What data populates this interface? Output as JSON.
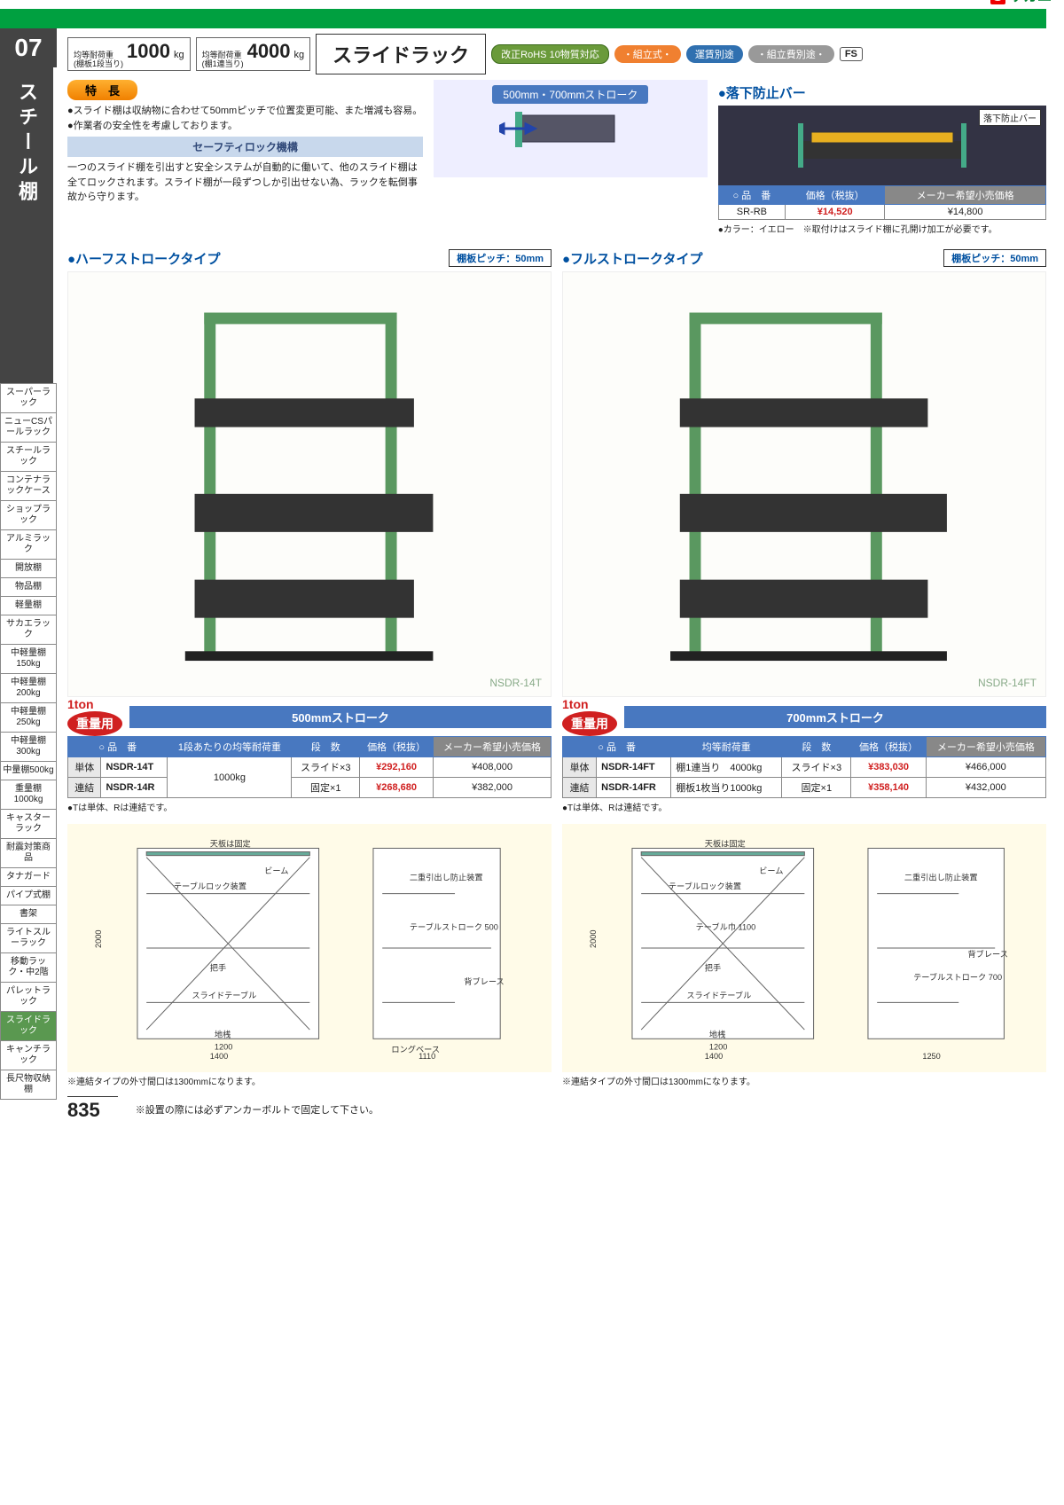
{
  "brand": "サカエ",
  "category": {
    "num": "07",
    "title": "スチール棚"
  },
  "sideNav": [
    "スーパーラック",
    "ニューCSパールラック",
    "スチールラック",
    "コンテナラックケース",
    "ショップラック",
    "アルミラック",
    "開放棚",
    "物品棚",
    "軽量棚",
    "サカエラック",
    "中軽量棚150kg",
    "中軽量棚200kg",
    "中軽量棚250kg",
    "中軽量棚300kg",
    "中量棚500kg",
    "重量棚1000kg",
    "キャスターラック",
    "耐震対策商品",
    "タナガード",
    "パイプ式棚",
    "書架",
    "ライトスルーラック",
    "移動ラック・中2階",
    "パレットラック",
    "スライドラック",
    "キャンチラック",
    "長尺物収納棚"
  ],
  "sideNavActive": 24,
  "loads": [
    {
      "label1": "均等耐荷重",
      "label2": "(棚板1段当り)",
      "value": "1000",
      "unit": "kg"
    },
    {
      "label1": "均等耐荷重",
      "label2": "(棚1連当り)",
      "value": "4000",
      "unit": "kg"
    }
  ],
  "title": "スライドラック",
  "badges": {
    "rohs": "改正RoHS 10物質対応",
    "pills": [
      "・組立式・",
      "運賃別途",
      "・組立費別途・"
    ],
    "fs": "FS"
  },
  "feature": {
    "label": "特　長",
    "bullets": [
      "●スライド棚は収納物に合わせて50mmピッチで位置変更可能、また増減も容易。",
      "●作業者の安全性を考慮しております。"
    ],
    "safetyHead": "セーフティロック機構",
    "safetyBody": "一つのスライド棚を引出すと安全システムが自動的に働いて、他のスライド棚は全てロックされます。スライド棚が一段ずつしか引出せない為、ラックを転倒事故から守ります。"
  },
  "strokeIllLabel": "500mm・700mmストローク",
  "fallBar": {
    "head": "●落下防止バー",
    "imgLabel": "落下防止バー",
    "table": {
      "cols": [
        "○ 品　番",
        "価格（税抜）",
        "メーカー希望小売価格"
      ],
      "row": [
        "SR-RB",
        "¥14,520",
        "¥14,800"
      ]
    },
    "note": "●カラー：イエロー　※取付けはスライド棚に孔開け加工が必要です。"
  },
  "halfStroke": {
    "head": "●ハーフストロークタイプ",
    "pitch": "棚板ピッチ：50mm",
    "model": "NSDR-14T",
    "ton": "1ton",
    "heavy": "重量用",
    "strokeBar": "500mmストローク",
    "tableCols": [
      "○ 品　番",
      "1段あたりの均等耐荷重",
      "段　数",
      "価格（税抜）",
      "メーカー希望小売価格"
    ],
    "rows": [
      {
        "lbl": "単体",
        "code": "NSDR-14T",
        "load": "1000kg",
        "tiers": "スライド×3",
        "price": "¥292,160",
        "msrp": "¥408,000"
      },
      {
        "lbl": "連結",
        "code": "NSDR-14R",
        "load": "",
        "tiers": "固定×1",
        "price": "¥268,680",
        "msrp": "¥382,000"
      }
    ],
    "note": "●Tは単体、Rは連結です。",
    "diagNote": "※連結タイプの外寸間口は1300mmになります。"
  },
  "fullStroke": {
    "head": "●フルストロークタイプ",
    "pitch": "棚板ピッチ：50mm",
    "model": "NSDR-14FT",
    "ton": "1ton",
    "heavy": "重量用",
    "strokeBar": "700mmストローク",
    "tableCols": [
      "○ 品　番",
      "均等耐荷重",
      "段　数",
      "価格（税抜）",
      "メーカー希望小売価格"
    ],
    "rows": [
      {
        "lbl": "単体",
        "code": "NSDR-14FT",
        "load": "棚1連当り　4000kg",
        "tiers": "スライド×3",
        "price": "¥383,030",
        "msrp": "¥466,000"
      },
      {
        "lbl": "連結",
        "code": "NSDR-14FR",
        "load": "棚板1枚当り1000kg",
        "tiers": "固定×1",
        "price": "¥358,140",
        "msrp": "¥432,000"
      }
    ],
    "note": "●Tは単体、Rは連結です。",
    "diagNote": "※連結タイプの外寸間口は1300mmになります。"
  },
  "diagramLabels": {
    "left": [
      "天板は固定",
      "ビーム",
      "テーブルロック装置",
      "二重引出し防止装置",
      "テーブルストローク 500",
      "把手",
      "スライドテーブル",
      "背ブレース",
      "ロングベース",
      "地桟"
    ],
    "right": [
      "天板は固定",
      "ビーム",
      "テーブルロック装置",
      "二重引出し防止装置",
      "テーブル巾 1100",
      "把手",
      "スライドテーブル",
      "テーブルストローク 700",
      "背ブレース",
      "地桟"
    ]
  },
  "footer": {
    "page": "835",
    "note": "※設置の際には必ずアンカーボルトで固定して下さい。"
  },
  "colors": {
    "green": "#00a040",
    "blue": "#4878c0",
    "red": "#d02020",
    "orange": "#f08030",
    "diagBg": "#fffbe8",
    "sideActive": "#5a9850"
  }
}
